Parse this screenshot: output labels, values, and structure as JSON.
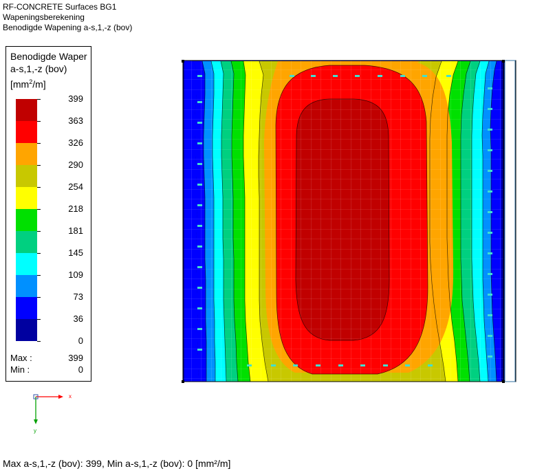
{
  "header": {
    "line1": "RF-CONCRETE Surfaces BG1",
    "line2": "Wapeningsberekening",
    "line3": "Benodigde Wapening a-s,1,-z (bov)"
  },
  "legend": {
    "title_line1": "Benodigde Waper",
    "title_line2": "a-s,1,-z (bov)",
    "unit_prefix": "[mm",
    "unit_sup": "2",
    "unit_suffix": "/m]",
    "levels": [
      "399",
      "363",
      "326",
      "290",
      "254",
      "218",
      "181",
      "145",
      "109",
      "73",
      "36",
      "0"
    ],
    "colors": [
      "#c00000",
      "#ff0000",
      "#ffa500",
      "#c8c800",
      "#ffff00",
      "#00e000",
      "#00d080",
      "#00ffff",
      "#0090ff",
      "#0000ff",
      "#0000a0"
    ],
    "max_label": "Max :",
    "max_value": "399",
    "min_label": "Min :",
    "min_value": "0"
  },
  "axes": {
    "x": "x",
    "y": "y",
    "x_color": "#ff0000",
    "y_color": "#00a000"
  },
  "footer": {
    "text": "Max a-s,1,-z (bov): 399, Min a-s,1,-z (bov): 0 [mm²/m]"
  }
}
